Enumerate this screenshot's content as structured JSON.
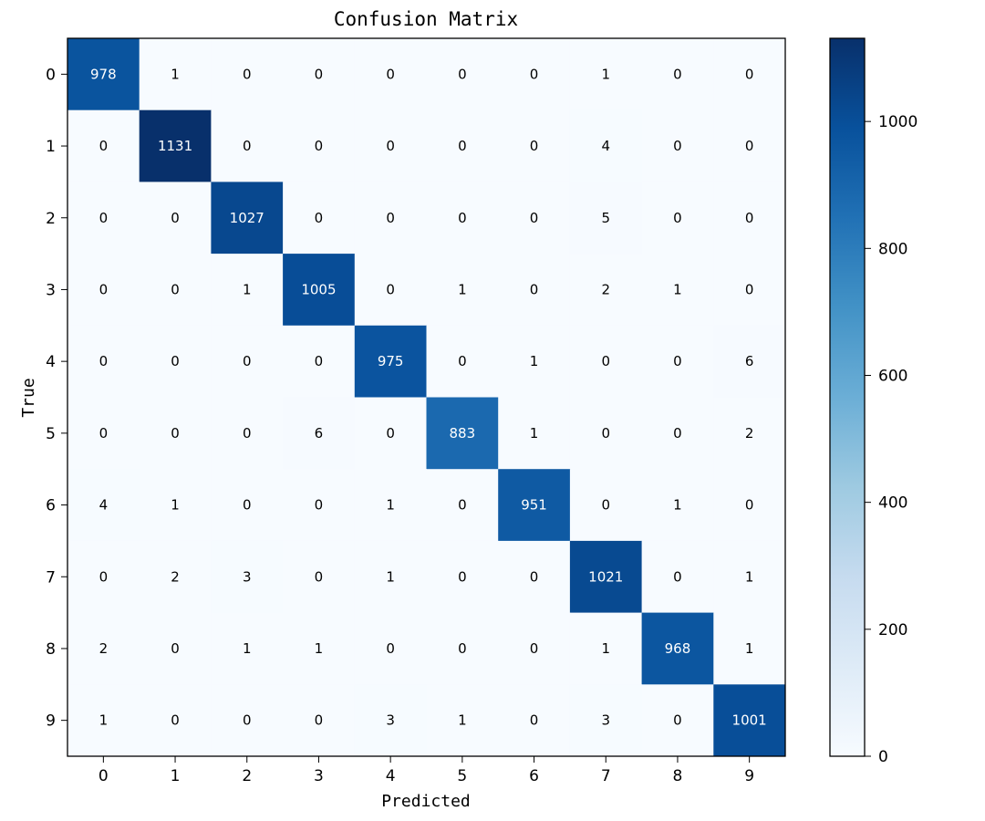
{
  "chart_data": {
    "type": "heatmap",
    "title": "Confusion Matrix",
    "xlabel": "Predicted",
    "ylabel": "True",
    "x_categories": [
      "0",
      "1",
      "2",
      "3",
      "4",
      "5",
      "6",
      "7",
      "8",
      "9"
    ],
    "y_categories": [
      "0",
      "1",
      "2",
      "3",
      "4",
      "5",
      "6",
      "7",
      "8",
      "9"
    ],
    "matrix": [
      [
        978,
        1,
        0,
        0,
        0,
        0,
        0,
        1,
        0,
        0
      ],
      [
        0,
        1131,
        0,
        0,
        0,
        0,
        0,
        4,
        0,
        0
      ],
      [
        0,
        0,
        1027,
        0,
        0,
        0,
        0,
        5,
        0,
        0
      ],
      [
        0,
        0,
        1,
        1005,
        0,
        1,
        0,
        2,
        1,
        0
      ],
      [
        0,
        0,
        0,
        0,
        975,
        0,
        1,
        0,
        0,
        6
      ],
      [
        0,
        0,
        0,
        6,
        0,
        883,
        1,
        0,
        0,
        2
      ],
      [
        4,
        1,
        0,
        0,
        1,
        0,
        951,
        0,
        1,
        0
      ],
      [
        0,
        2,
        3,
        0,
        1,
        0,
        0,
        1021,
        0,
        1
      ],
      [
        2,
        0,
        1,
        1,
        0,
        0,
        0,
        1,
        968,
        1
      ],
      [
        1,
        0,
        0,
        0,
        3,
        1,
        0,
        3,
        0,
        1001
      ]
    ],
    "colormap": "Blues",
    "colormap_stops": [
      "#f7fbff",
      "#deebf7",
      "#c6dbef",
      "#9ecae1",
      "#6baed6",
      "#4292c6",
      "#2171b5",
      "#08519c",
      "#08306b"
    ],
    "colorbar": {
      "min": 0,
      "max": 1131,
      "ticks": [
        0,
        200,
        400,
        600,
        800,
        1000
      ]
    },
    "grid": false,
    "legend": "none"
  }
}
